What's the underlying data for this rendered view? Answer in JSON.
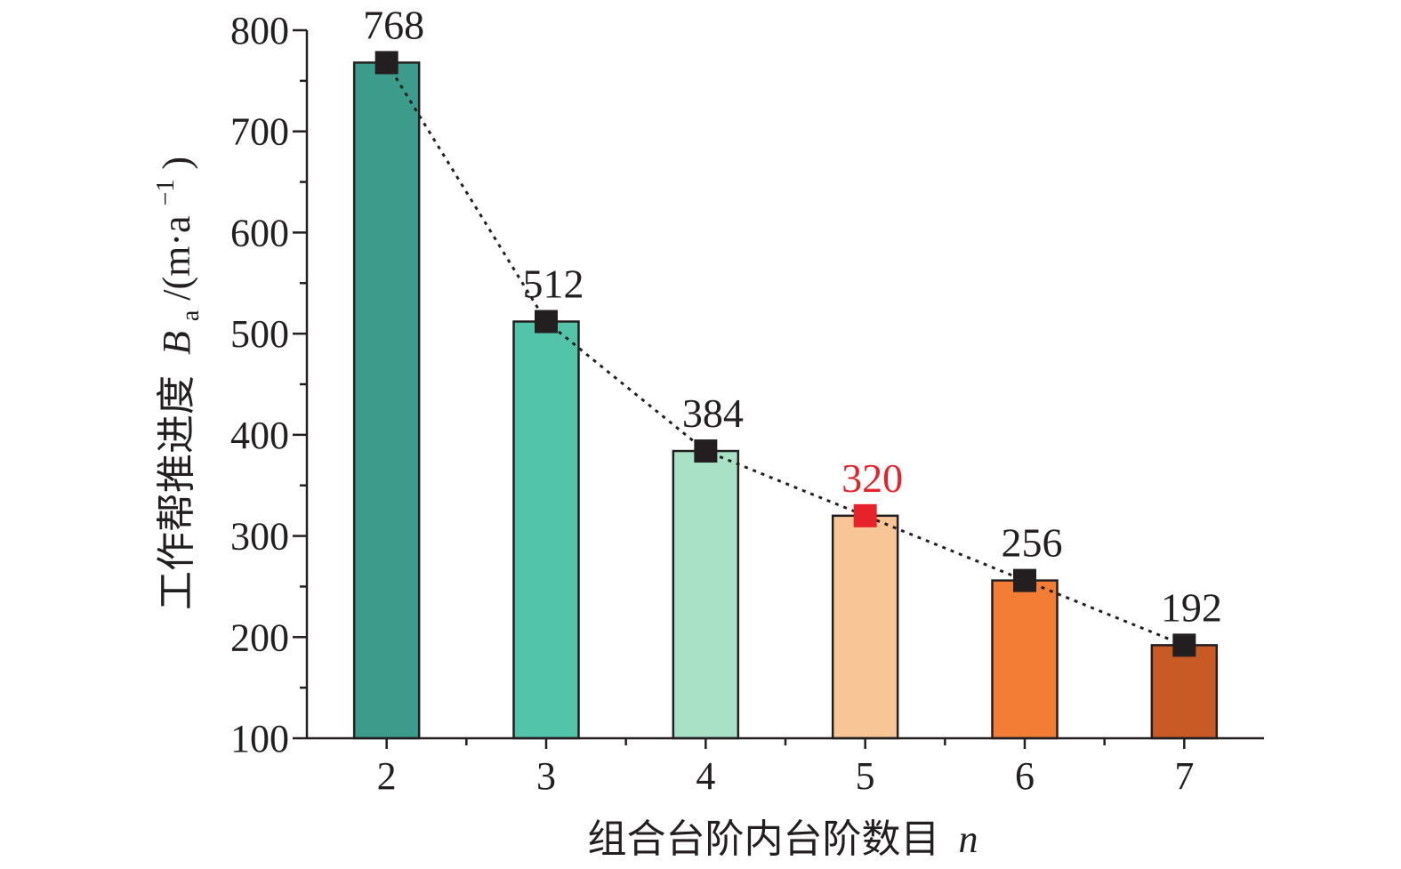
{
  "chart_data": {
    "type": "bar",
    "categories": [
      "2",
      "3",
      "4",
      "5",
      "6",
      "7"
    ],
    "values": [
      768,
      512,
      384,
      320,
      256,
      192
    ],
    "data_labels": [
      "768",
      "512",
      "384",
      "320",
      "256",
      "192"
    ],
    "bar_colors": [
      "#3d9b8c",
      "#52c4a9",
      "#a9e1c7",
      "#f8c597",
      "#f47d35",
      "#c85b25"
    ],
    "marker_colors": [
      "#231f20",
      "#231f20",
      "#231f20",
      "#e6232b",
      "#231f20",
      "#231f20"
    ],
    "label_colors": [
      "#231f20",
      "#231f20",
      "#231f20",
      "#e6232b",
      "#231f20",
      "#231f20"
    ],
    "overlay_line": {
      "style": "dotted",
      "marker": "square",
      "values": [
        768,
        512,
        384,
        320,
        256,
        192
      ]
    },
    "xlabel_text": "组合台阶内台阶数目",
    "xlabel_var": "n",
    "ylabel_text": "工作帮推进度",
    "ylabel_var": "B",
    "ylabel_sub": "a",
    "ylabel_unit_pre": "/(m·a",
    "ylabel_sup": "−1",
    "ylabel_unit_post": ")",
    "ylim": [
      100,
      800
    ],
    "yticks": [
      100,
      200,
      300,
      400,
      500,
      600,
      700,
      800
    ],
    "grid": false,
    "legend": "none"
  }
}
